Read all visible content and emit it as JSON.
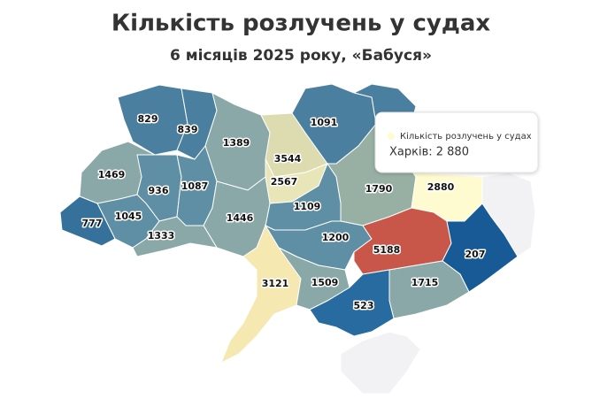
{
  "chart_data": {
    "type": "choropleth",
    "title": "Кількість розлучень у судах",
    "subtitle": "6 місяців 2025 року, «Бабуся»",
    "values": [
      829,
      839,
      1389,
      3544,
      1091,
      2567,
      1469,
      936,
      1087,
      1790,
      2880,
      1109,
      1045,
      777,
      1446,
      1333,
      1200,
      5188,
      207,
      3121,
      1509,
      1715,
      523
    ],
    "colors": [
      "#4a7fa0",
      "#4a7fa0",
      "#8aa8a8",
      "#dcdcb0",
      "#4a7fa0",
      "#e8e6b8",
      "#8aa8a8",
      "#5f8fa5",
      "#5f8fa5",
      "#98b0a4",
      "#fffbd0",
      "#5f8fa5",
      "#5f8fa5",
      "#35719b",
      "#8aa8a8",
      "#8aa8a8",
      "#5f8fa5",
      "#c8574a",
      "#175a96",
      "#f5e8b0",
      "#8aa8a8",
      "#8aa8a8",
      "#286ba0"
    ],
    "tooltip": {
      "series_name": "Кількість розлучень у судах",
      "text": "Харків: 2 880"
    }
  }
}
